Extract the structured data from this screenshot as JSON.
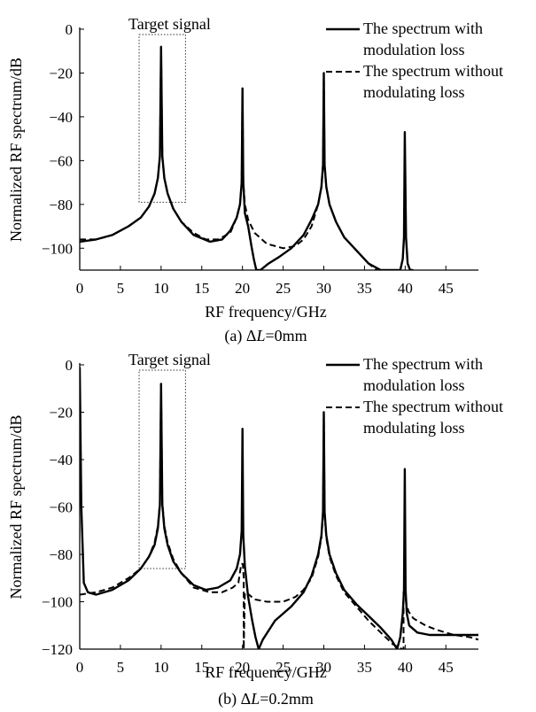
{
  "chart_data": [
    {
      "type": "line",
      "caption_prefix": "(a) Δ",
      "caption_var": "L",
      "caption_suffix": "=0mm",
      "xlabel": "RF frequency/GHz",
      "ylabel": "Normalized RF spectrum/dB",
      "xlim": [
        0,
        49
      ],
      "ylim": [
        -110,
        0
      ],
      "xticks": [
        0,
        5,
        10,
        15,
        20,
        25,
        30,
        35,
        40,
        45
      ],
      "yticks": [
        0,
        -20,
        -40,
        -60,
        -80,
        -100
      ],
      "annotation": {
        "text": "Target signal",
        "x_range": [
          7.3,
          13
        ],
        "y_range": [
          -79,
          0
        ]
      },
      "legend": [
        {
          "style": "solid",
          "lines": [
            "The spectrum with",
            "modulation loss"
          ]
        },
        {
          "style": "dashed",
          "lines": [
            "The spectrum without",
            "modulating loss"
          ]
        }
      ],
      "series": [
        {
          "style": "solid",
          "x": [
            0,
            2,
            4,
            6,
            7.5,
            8.5,
            9.2,
            9.6,
            9.85,
            10,
            10.15,
            10.4,
            10.8,
            11.5,
            12.5,
            14,
            16,
            17.5,
            18.5,
            19.3,
            19.7,
            19.9,
            20,
            20.1,
            20.3,
            20.7,
            21.1,
            21.4,
            21.7,
            22.2,
            23.2,
            24.5,
            26,
            27.5,
            28.5,
            29.3,
            29.7,
            29.9,
            30,
            30.1,
            30.3,
            30.7,
            31.5,
            32.5,
            34,
            35.5,
            37,
            38.5,
            39.4,
            39.7,
            39.85,
            39.95,
            40.1,
            40.3,
            40.6,
            41
          ],
          "y": [
            -97,
            -96,
            -94,
            -90,
            -86,
            -81,
            -75,
            -68,
            -58,
            -8,
            -58,
            -68,
            -75,
            -82,
            -88,
            -94,
            -97,
            -96,
            -92,
            -86,
            -80,
            -70,
            -27,
            -70,
            -84,
            -90,
            -99,
            -105,
            -110,
            -110,
            -107,
            -104,
            -100,
            -94,
            -87,
            -80,
            -72,
            -62,
            -20,
            -62,
            -72,
            -80,
            -88,
            -95,
            -101,
            -107,
            -110,
            -110,
            -110,
            -105,
            -95,
            -47,
            -95,
            -107,
            -110,
            -110
          ]
        },
        {
          "style": "dashed",
          "x": [
            0,
            2,
            4,
            6,
            7.5,
            8.5,
            9.2,
            9.6,
            9.85,
            10,
            10.15,
            10.4,
            10.8,
            11.5,
            12.5,
            14,
            15.5,
            17,
            18.5,
            19.3,
            19.7,
            19.9,
            20,
            20.1,
            20.3,
            20.7,
            21.5,
            23,
            25,
            26.5,
            27.5,
            28.5,
            29.3,
            29.7,
            29.9,
            30,
            30.1,
            30.3,
            30.7,
            31.5,
            32.5,
            34,
            35.5,
            36.5
          ],
          "y": [
            -96,
            -96,
            -94,
            -90,
            -86,
            -81,
            -75,
            -68,
            -58,
            -8,
            -58,
            -68,
            -75,
            -82,
            -88,
            -93,
            -96,
            -96,
            -93,
            -86,
            -80,
            -70,
            -27,
            -70,
            -80,
            -87,
            -93,
            -98,
            -100,
            -99,
            -96,
            -90,
            -80,
            -72,
            -62,
            -20,
            -62,
            -72,
            -80,
            -88,
            -95,
            -101,
            -107,
            -110
          ]
        }
      ]
    },
    {
      "type": "line",
      "caption_prefix": "(b) Δ",
      "caption_var": "L",
      "caption_suffix": "=0.2mm",
      "xlabel": "RF frequency/GHz",
      "ylabel": "Normalized RF spectrum/dB",
      "xlim": [
        0,
        49
      ],
      "ylim": [
        -120,
        0
      ],
      "xticks": [
        0,
        5,
        10,
        15,
        20,
        25,
        30,
        35,
        40,
        45
      ],
      "yticks": [
        0,
        -20,
        -40,
        -60,
        -80,
        -100,
        -120
      ],
      "annotation": {
        "text": "Target signal",
        "x_range": [
          7.3,
          13
        ],
        "y_range": [
          -86,
          0
        ]
      },
      "legend": [
        {
          "style": "solid",
          "lines": [
            "The spectrum with",
            "modulation loss"
          ]
        },
        {
          "style": "dashed",
          "lines": [
            "The spectrum without",
            "modulating loss"
          ]
        }
      ],
      "series": [
        {
          "style": "solid",
          "x": [
            0,
            0.2,
            0.5,
            1,
            2,
            4,
            6,
            7.5,
            8.5,
            9.2,
            9.6,
            9.85,
            10,
            10.15,
            10.4,
            10.8,
            11.5,
            12.5,
            14,
            15.5,
            17,
            18.5,
            19.3,
            19.7,
            19.9,
            20,
            20.1,
            20.3,
            20.7,
            21.2,
            21.6,
            22,
            22.5,
            24,
            26,
            27.5,
            28.5,
            29.3,
            29.7,
            29.9,
            30,
            30.1,
            30.3,
            30.7,
            31.5,
            32.5,
            34,
            35.5,
            37,
            38.3,
            39,
            39.4,
            39.7,
            39.85,
            39.95,
            40.05,
            40.2,
            40.5,
            41.5,
            43,
            45,
            47,
            49
          ],
          "y": [
            -1,
            -60,
            -92,
            -96,
            -97,
            -95,
            -91,
            -86,
            -81,
            -76,
            -69,
            -59,
            -8,
            -59,
            -69,
            -76,
            -83,
            -88,
            -93,
            -95,
            -94,
            -91,
            -86,
            -80,
            -70,
            -27,
            -72,
            -85,
            -98,
            -108,
            -115,
            -120,
            -116,
            -108,
            -102,
            -96,
            -89,
            -80,
            -72,
            -62,
            -20,
            -62,
            -72,
            -80,
            -88,
            -95,
            -101,
            -106,
            -111,
            -116,
            -120,
            -115,
            -105,
            -95,
            -44,
            -95,
            -105,
            -110,
            -113,
            -114,
            -114,
            -114,
            -114
          ]
        },
        {
          "style": "dashed",
          "x": [
            0,
            2,
            4,
            6,
            7.5,
            8.5,
            9.2,
            9.6,
            9.85,
            10,
            10.15,
            10.4,
            10.8,
            11.5,
            12.5,
            14,
            16,
            17.5,
            18.8,
            19.5,
            19.85,
            20.05,
            20.15,
            20.15,
            20.3,
            20.8,
            21.5,
            23,
            25,
            26.5,
            27.5,
            28.5,
            29.3,
            29.7,
            29.9,
            30,
            30.1,
            30.3,
            30.7,
            31.5,
            32.5,
            34,
            35.5,
            37,
            38.5,
            39.6,
            39.8,
            39.8,
            39.95,
            40.1,
            40.4,
            41,
            42.5,
            44,
            46,
            48,
            49
          ],
          "y": [
            -97,
            -96,
            -94,
            -90,
            -86,
            -81,
            -75,
            -68,
            -58,
            -8,
            -58,
            -68,
            -75,
            -82,
            -88,
            -94,
            -96,
            -96,
            -94,
            -92,
            -84,
            -84,
            -90,
            -120,
            -96,
            -97,
            -99,
            -100,
            -100,
            -98,
            -95,
            -90,
            -81,
            -73,
            -63,
            -20,
            -63,
            -73,
            -81,
            -89,
            -96,
            -102,
            -108,
            -113,
            -118,
            -120,
            -120,
            -96,
            -96,
            -100,
            -104,
            -107,
            -110,
            -112,
            -114,
            -115,
            -116
          ]
        }
      ]
    }
  ]
}
